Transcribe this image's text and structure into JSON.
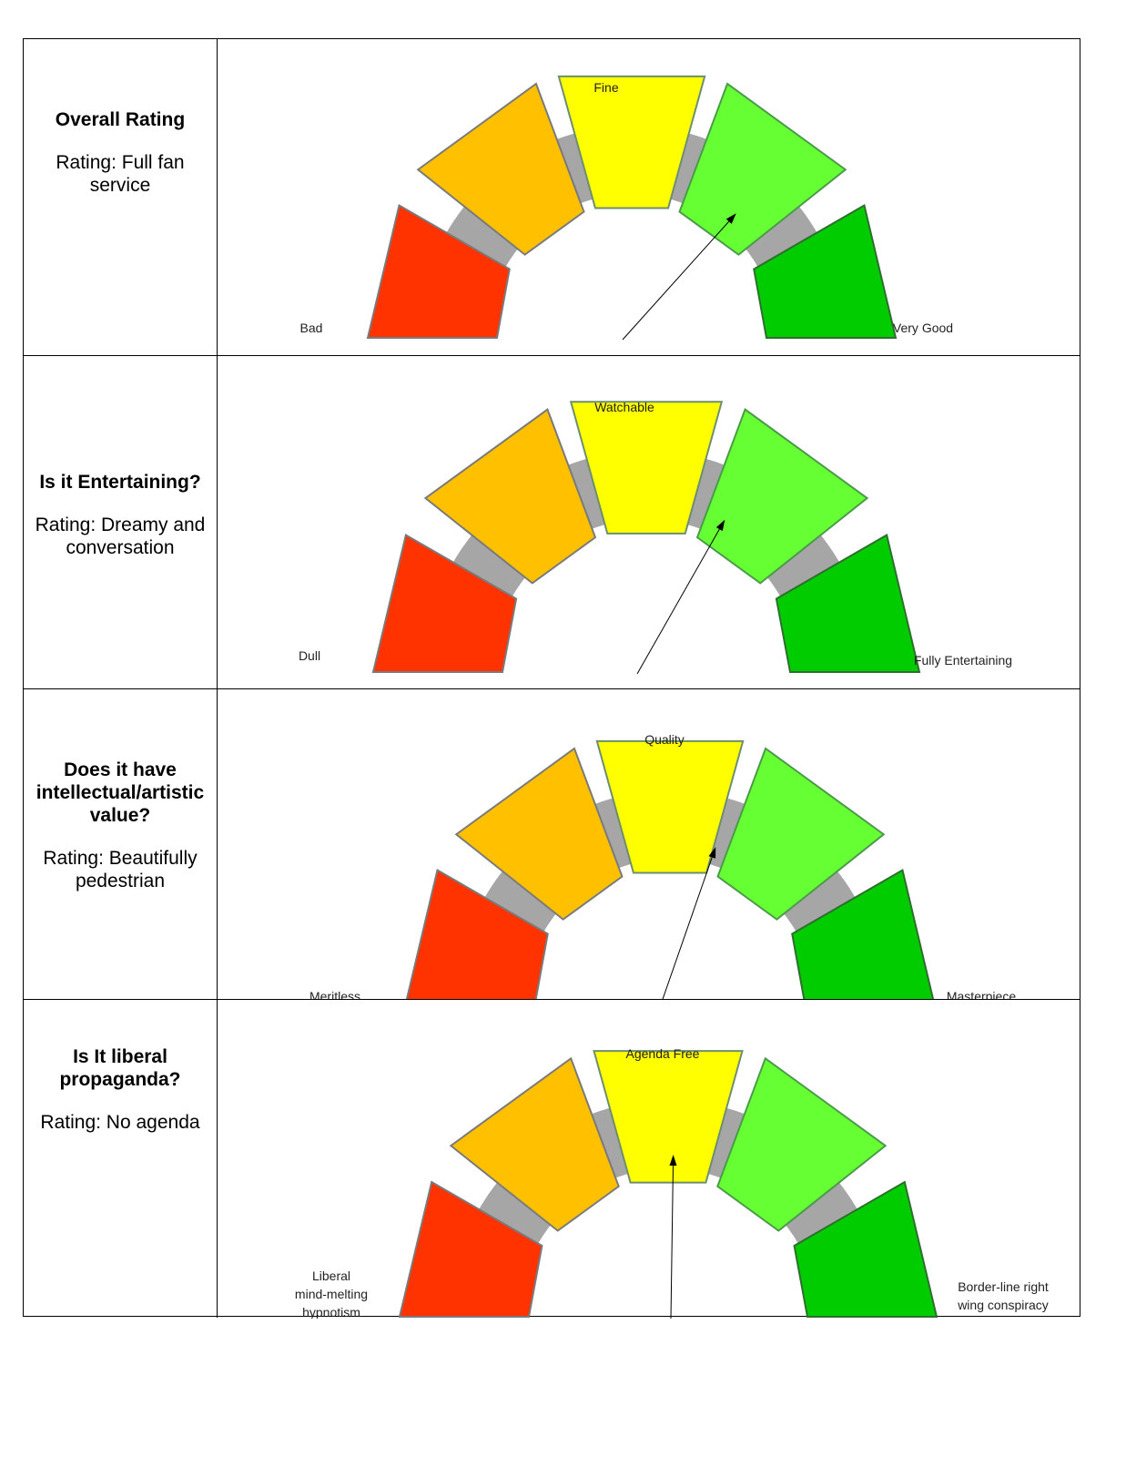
{
  "colors": {
    "segments": [
      "#ff3300",
      "#ffc000",
      "#ffff00",
      "#66ff33",
      "#00cc00"
    ],
    "segment_borders": [
      "#7a7a7a",
      "#7a7a7a",
      "#6e8e6e",
      "#4a9a4a",
      "#2e6e2e"
    ],
    "arc": "#a6a6a6",
    "needle": "#000000"
  },
  "chart_data": [
    {
      "type": "gauge",
      "question": "Overall Rating",
      "rating_text": "Rating: Full fan service",
      "scale_labels": {
        "low": "Bad",
        "mid": "Fine",
        "high": "Very Good"
      },
      "segments": 5,
      "needle_value": 0.72
    },
    {
      "type": "gauge",
      "question": "Is it Entertaining?",
      "rating_text": "Rating: Dreamy and conversation",
      "scale_labels": {
        "low": "Dull",
        "mid": "Watchable",
        "high": "Fully Entertaining"
      },
      "segments": 5,
      "needle_value": 0.65
    },
    {
      "type": "gauge",
      "question": "Does it have intellectual/artistic value?",
      "rating_text": "Rating: Beautifully pedestrian",
      "scale_labels": {
        "low": "Meritless",
        "mid": "Quality",
        "high": "Masterpiece"
      },
      "segments": 5,
      "needle_value": 0.59
    },
    {
      "type": "gauge",
      "question": "Is It liberal propaganda?",
      "rating_text": "Rating: No agenda",
      "scale_labels": {
        "low": "Liberal mind-melting hypnotism",
        "mid": "Agenda Free",
        "high": "Border-line right wing conspiracy"
      },
      "segments": 5,
      "needle_value": 0.51
    }
  ]
}
